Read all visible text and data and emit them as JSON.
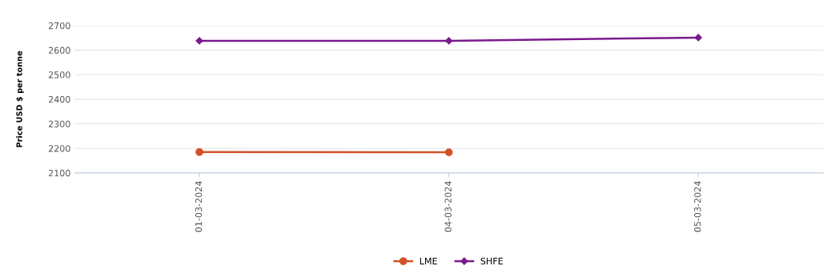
{
  "chart_data": {
    "type": "line",
    "ylabel": "Price USD $ per tonne",
    "categories": [
      "01-03-2024",
      "04-03-2024",
      "05-03-2024"
    ],
    "series": [
      {
        "name": "LME",
        "color": "#d4502a",
        "values": [
          2185,
          2184,
          null
        ],
        "marker": "circle"
      },
      {
        "name": "SHFE",
        "color": "#7a1a8c",
        "values": [
          2638,
          2638,
          2651
        ],
        "marker": "diamond"
      }
    ],
    "ylim": [
      2100,
      2700
    ],
    "yticks": [
      2100,
      2200,
      2300,
      2400,
      2500,
      2600,
      2700
    ],
    "grid": "y",
    "legend": "bottom"
  }
}
